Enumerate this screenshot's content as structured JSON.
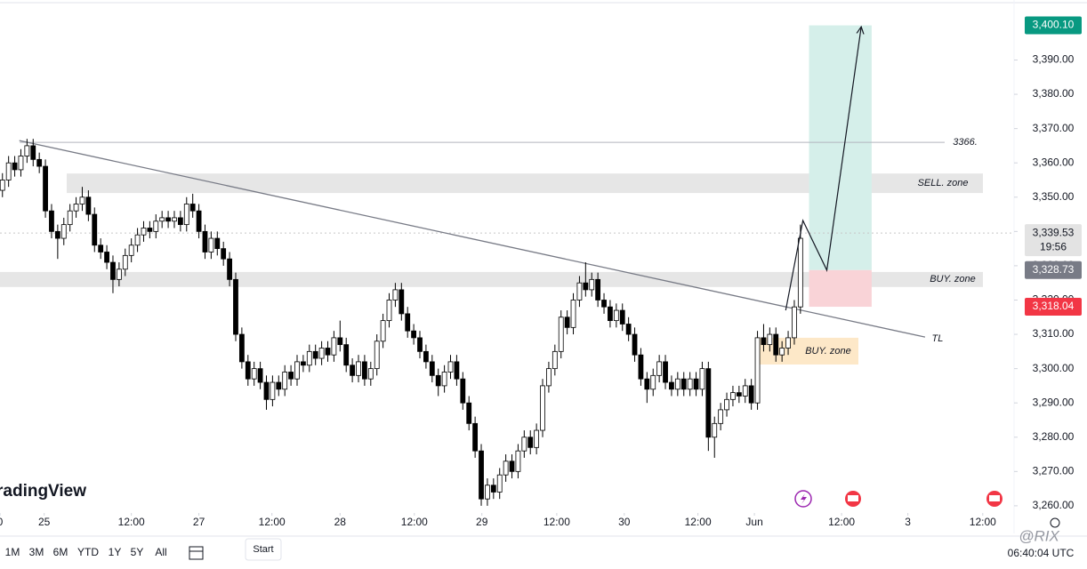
{
  "chart_data": {
    "type": "candlestick",
    "xlim": [
      -0.4,
      164.8
    ],
    "ylim": [
      3257.9,
      3407.5
    ],
    "grid": false,
    "up_color": "#ffffff",
    "down_color": "#000000",
    "edge_color": "#000000",
    "xticks": [
      {
        "value": -0.4,
        "label": "0"
      },
      {
        "value": 6.8,
        "label": "25"
      },
      {
        "value": 21,
        "label": "12:00"
      },
      {
        "value": 32,
        "label": "27"
      },
      {
        "value": 43.9,
        "label": "12:00"
      },
      {
        "value": 55,
        "label": "28"
      },
      {
        "value": 67.1,
        "label": "12:00"
      },
      {
        "value": 78.1,
        "label": "29"
      },
      {
        "value": 90.3,
        "label": "12:00"
      },
      {
        "value": 101.3,
        "label": "30"
      },
      {
        "value": 113.3,
        "label": "12:00"
      },
      {
        "value": 122.5,
        "label": "Jun"
      },
      {
        "value": 136.7,
        "label": "12:00"
      },
      {
        "value": 147.5,
        "label": "3"
      },
      {
        "value": 159.7,
        "label": "12:00"
      }
    ],
    "yticks": [
      {
        "value": 3260,
        "label": "3,260.00"
      },
      {
        "value": 3270,
        "label": "3,270.00"
      },
      {
        "value": 3280,
        "label": "3,280.00"
      },
      {
        "value": 3290,
        "label": "3,290.00"
      },
      {
        "value": 3300,
        "label": "3,300.00"
      },
      {
        "value": 3310,
        "label": "3,310.00"
      },
      {
        "value": 3320,
        "label": "3,320.00"
      },
      {
        "value": 3330,
        "label": "3,330.00"
      },
      {
        "value": 3340,
        "label": "3,340.00"
      },
      {
        "value": 3350,
        "label": "3,350.00"
      },
      {
        "value": 3360,
        "label": "3,360.00"
      },
      {
        "value": 3370,
        "label": "3,370.00"
      },
      {
        "value": 3380,
        "label": "3,380.00"
      },
      {
        "value": 3390,
        "label": "3,390.00"
      }
    ],
    "open": [
      3352,
      3355,
      3360,
      3358,
      3362,
      3365,
      3361,
      3359,
      3346,
      3340,
      3338,
      3342,
      3346,
      3348,
      3350,
      3345,
      3336,
      3334,
      3331,
      3326,
      3329,
      3333,
      3336,
      3339,
      3341,
      3340,
      3343,
      3344,
      3343,
      3344,
      3342,
      3348,
      3346,
      3340,
      3334,
      3338,
      3335,
      3332,
      3326,
      3310,
      3302,
      3297,
      3300,
      3296,
      3291,
      3296,
      3294,
      3299,
      3297,
      3302,
      3301,
      3305,
      3303,
      3306,
      3304,
      3309,
      3307,
      3301,
      3298,
      3302,
      3297,
      3300,
      3308,
      3314,
      3320,
      3323,
      3316,
      3311,
      3309,
      3305,
      3302,
      3298,
      3295,
      3299,
      3302,
      3297,
      3290,
      3284,
      3276,
      3262,
      3266,
      3264,
      3269,
      3273,
      3270,
      3276,
      3280,
      3277,
      3282,
      3295,
      3300,
      3305,
      3315,
      3312,
      3320,
      3325,
      3323,
      3326,
      3320,
      3318,
      3314,
      3317,
      3313,
      3310,
      3304,
      3297,
      3294,
      3298,
      3302,
      3296,
      3294,
      3297,
      3294,
      3297,
      3294,
      3300,
      3280,
      3284,
      3288,
      3291,
      3293,
      3292,
      3295,
      3290,
      3309,
      3307,
      3310,
      3304,
      3306,
      3309,
      3318
    ],
    "high": [
      3357,
      3362,
      3362,
      3364,
      3367,
      3367,
      3363,
      3361,
      3348,
      3342,
      3344,
      3348,
      3350,
      3353,
      3352,
      3347,
      3338,
      3336,
      3333,
      3331,
      3335,
      3338,
      3341,
      3343,
      3343,
      3345,
      3346,
      3346,
      3346,
      3346,
      3350,
      3351,
      3348,
      3342,
      3340,
      3340,
      3337,
      3334,
      3328,
      3312,
      3304,
      3302,
      3302,
      3298,
      3298,
      3298,
      3301,
      3301,
      3304,
      3304,
      3307,
      3307,
      3308,
      3308,
      3311,
      3314,
      3309,
      3303,
      3304,
      3304,
      3302,
      3310,
      3316,
      3322,
      3325,
      3325,
      3318,
      3313,
      3311,
      3307,
      3304,
      3300,
      3301,
      3304,
      3304,
      3299,
      3292,
      3286,
      3278,
      3268,
      3268,
      3271,
      3275,
      3275,
      3278,
      3282,
      3282,
      3284,
      3297,
      3302,
      3307,
      3317,
      3317,
      3322,
      3327,
      3331,
      3328,
      3328,
      3322,
      3320,
      3319,
      3319,
      3315,
      3312,
      3306,
      3299,
      3300,
      3304,
      3304,
      3298,
      3299,
      3299,
      3299,
      3299,
      3302,
      3302,
      3286,
      3290,
      3293,
      3295,
      3295,
      3297,
      3297,
      3311,
      3313,
      3312,
      3312,
      3308,
      3311,
      3320,
      3342
    ],
    "low": [
      3350,
      3353,
      3356,
      3356,
      3360,
      3359,
      3357,
      3344,
      3338,
      3332,
      3336,
      3340,
      3344,
      3346,
      3343,
      3334,
      3332,
      3329,
      3322,
      3324,
      3327,
      3331,
      3334,
      3337,
      3338,
      3338,
      3341,
      3341,
      3341,
      3340,
      3340,
      3344,
      3338,
      3332,
      3332,
      3333,
      3330,
      3324,
      3308,
      3300,
      3295,
      3295,
      3294,
      3288,
      3289,
      3292,
      3292,
      3295,
      3295,
      3299,
      3299,
      3301,
      3301,
      3302,
      3302,
      3305,
      3299,
      3296,
      3296,
      3295,
      3295,
      3298,
      3306,
      3312,
      3318,
      3314,
      3309,
      3307,
      3303,
      3300,
      3296,
      3292,
      3293,
      3297,
      3295,
      3288,
      3282,
      3274,
      3260,
      3260,
      3262,
      3262,
      3267,
      3268,
      3268,
      3274,
      3275,
      3275,
      3280,
      3293,
      3298,
      3303,
      3310,
      3310,
      3318,
      3321,
      3321,
      3318,
      3316,
      3312,
      3312,
      3311,
      3308,
      3302,
      3295,
      3290,
      3292,
      3296,
      3294,
      3292,
      3292,
      3292,
      3292,
      3292,
      3292,
      3276,
      3274,
      3282,
      3286,
      3289,
      3290,
      3290,
      3288,
      3288,
      3305,
      3305,
      3302,
      3302,
      3304,
      3307,
      3316
    ],
    "close": [
      3355,
      3360,
      3358,
      3362,
      3365,
      3361,
      3359,
      3346,
      3340,
      3338,
      3342,
      3346,
      3348,
      3350,
      3345,
      3336,
      3334,
      3331,
      3326,
      3329,
      3333,
      3336,
      3339,
      3341,
      3340,
      3343,
      3344,
      3343,
      3344,
      3342,
      3348,
      3346,
      3340,
      3334,
      3338,
      3335,
      3332,
      3326,
      3310,
      3302,
      3297,
      3300,
      3296,
      3291,
      3296,
      3294,
      3299,
      3297,
      3302,
      3301,
      3305,
      3303,
      3306,
      3304,
      3309,
      3307,
      3301,
      3298,
      3302,
      3297,
      3300,
      3308,
      3314,
      3320,
      3323,
      3316,
      3311,
      3309,
      3305,
      3302,
      3298,
      3295,
      3299,
      3302,
      3297,
      3290,
      3284,
      3276,
      3262,
      3266,
      3264,
      3269,
      3273,
      3270,
      3276,
      3280,
      3277,
      3282,
      3295,
      3300,
      3305,
      3315,
      3312,
      3320,
      3325,
      3323,
      3326,
      3320,
      3318,
      3314,
      3317,
      3313,
      3310,
      3304,
      3297,
      3294,
      3298,
      3302,
      3296,
      3294,
      3297,
      3294,
      3297,
      3294,
      3300,
      3280,
      3284,
      3288,
      3291,
      3293,
      3292,
      3295,
      3290,
      3309,
      3307,
      3310,
      3304,
      3306,
      3309,
      3318,
      3338
    ],
    "zones": [
      {
        "label": "SELL. zone",
        "low": 3351.2,
        "high": 3356.9,
        "color": "#e6e6e6"
      },
      {
        "label": "BUY. zone",
        "low": 3323.8,
        "high": 3328.2,
        "color": "#e6e6e6"
      },
      {
        "label": "BUY. zone",
        "low": 3301.2,
        "high": 3309,
        "color": "#fde8c8"
      }
    ],
    "hline": {
      "value": 3366,
      "label": "3366."
    },
    "trendline": {
      "label": "TL",
      "x": [
        2.75,
        150.3
      ],
      "y": [
        3366.5,
        3309.2
      ]
    },
    "current_line": 3339.53,
    "position": {
      "from": 131.4,
      "to": 141.6,
      "target": 3400.1,
      "entry": 3328.73,
      "stop": 3318.04,
      "profit_color": "#d5efea",
      "loss_color": "#f9d3d7"
    },
    "projection": {
      "x": [
        127.6,
        130.4,
        134.3,
        139.9
      ],
      "y": [
        3317,
        3343.2,
        3328.7,
        3399.7
      ]
    },
    "price_labels": [
      {
        "value": 3400.1,
        "label": "3,400.10",
        "color": "#089981",
        "text_color": "#ffffff"
      },
      {
        "value": 3339.53,
        "label": "3,339.53",
        "time": "19:56",
        "color": "#e3e3e3",
        "text_color": "#131722"
      },
      {
        "value": 3328.73,
        "label": "3,328.73",
        "color": "#787b86",
        "text_color": "#ffffff"
      },
      {
        "value": 3318.04,
        "label": "3,318.04",
        "color": "#f23645",
        "text_color": "#ffffff"
      }
    ]
  },
  "logo": "radingView",
  "toolbar": {
    "ranges": [
      "1M",
      "3M",
      "6M",
      "YTD",
      "1Y",
      "5Y",
      "All"
    ],
    "tooltip": "Start",
    "clock": "06:40:04 UTC"
  },
  "watermark": "@RIX"
}
